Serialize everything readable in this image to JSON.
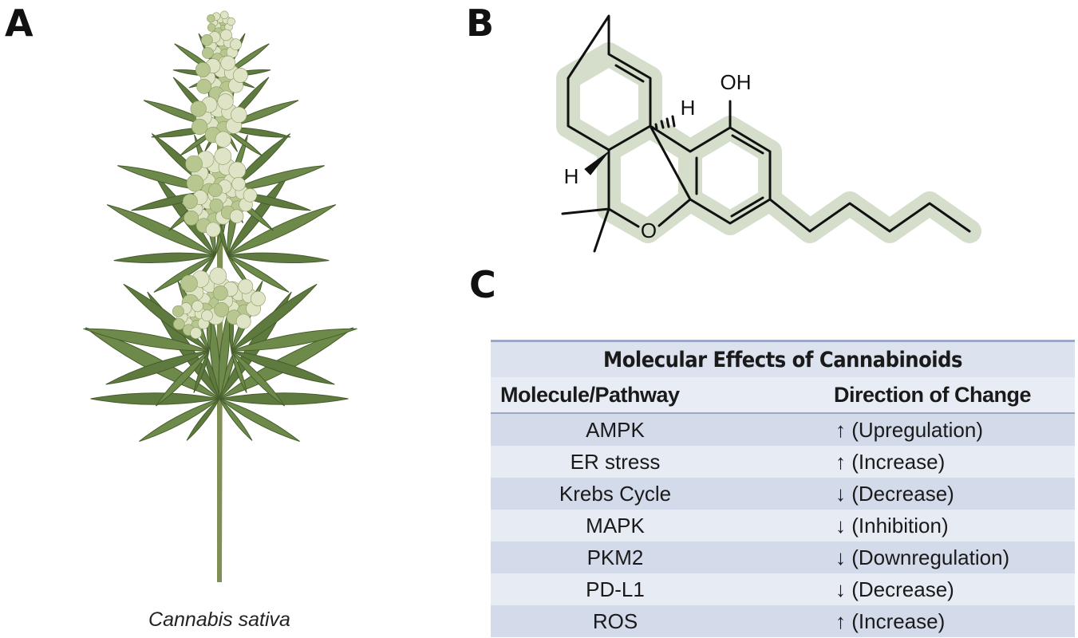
{
  "panels": {
    "a": {
      "label": "A",
      "caption": "Cannabis sativa"
    },
    "b": {
      "label": "B",
      "atoms": [
        "OH",
        "H",
        "H",
        "O"
      ]
    },
    "c": {
      "label": "C"
    }
  },
  "table": {
    "title": "Molecular Effects of Cannabinoids",
    "header": [
      "Molecule/Pathway",
      "Direction of Change"
    ],
    "rows": [
      [
        "AMPK",
        "↑ (Upregulation)"
      ],
      [
        "ER stress",
        "↑ (Increase)"
      ],
      [
        "Krebs Cycle",
        "↓ (Decrease)"
      ],
      [
        "MAPK",
        "↓ (Inhibition)"
      ],
      [
        "PKM2",
        "↓ (Downregulation)"
      ],
      [
        "PD-L1",
        "↓ (Decrease)"
      ],
      [
        "ROS",
        "↑ (Increase)"
      ]
    ]
  }
}
